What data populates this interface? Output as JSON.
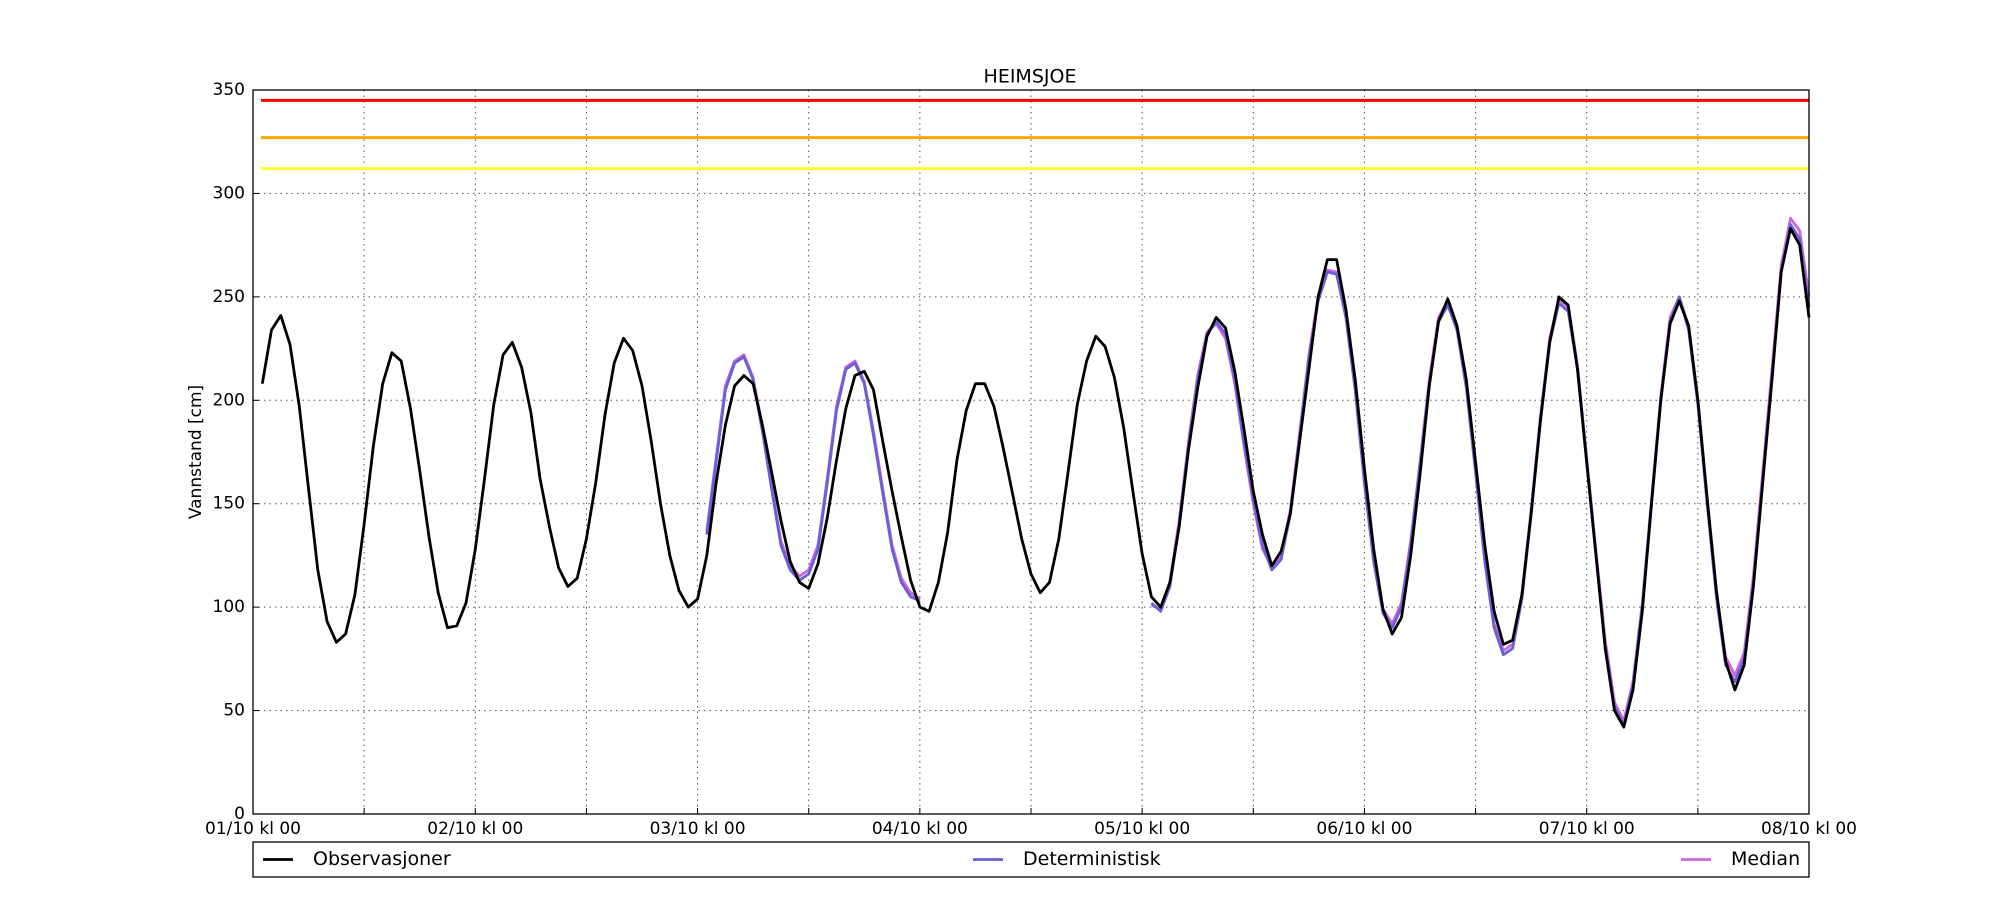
{
  "chart_data": {
    "type": "line",
    "title": "HEIMSJOE",
    "ylabel": "Vannstand [cm]",
    "x": [
      1,
      2,
      3,
      4,
      5,
      6,
      7,
      8,
      9,
      10,
      11,
      12,
      13,
      14,
      15,
      16,
      17,
      18,
      19,
      20,
      21,
      22,
      23,
      24,
      25,
      26,
      27,
      28,
      29,
      30,
      31,
      32,
      33,
      34,
      35,
      36,
      37,
      38,
      39,
      40,
      41,
      42,
      43,
      44,
      45,
      46,
      47,
      48,
      49,
      50,
      51,
      52,
      53,
      54,
      55,
      56,
      57,
      58,
      59,
      60,
      61,
      62,
      63,
      64,
      65,
      66,
      67,
      68,
      69,
      70,
      71,
      72,
      73,
      74,
      75,
      76,
      77,
      78,
      79,
      80,
      81,
      82,
      83,
      84,
      85,
      86,
      87,
      88,
      89,
      90,
      91,
      92,
      93,
      94,
      95,
      96,
      97,
      98,
      99,
      100,
      101,
      102,
      103,
      104,
      105,
      106,
      107,
      108,
      109,
      110,
      111,
      112,
      113,
      114,
      115,
      116,
      117,
      118,
      119,
      120,
      121,
      122,
      123,
      124,
      125,
      126,
      127,
      128,
      129,
      130,
      131,
      132,
      133,
      134,
      135,
      136,
      137,
      138,
      139,
      140,
      141,
      142,
      143,
      144,
      145,
      146,
      147,
      148,
      149,
      150,
      151,
      152,
      153,
      154,
      155,
      156,
      157,
      158,
      159,
      160,
      161,
      162,
      163,
      164,
      165,
      166,
      167,
      168
    ],
    "series": [
      {
        "name": "Observasjoner",
        "color": "#000000",
        "values": [
          208,
          234,
          241,
          227,
          197,
          157,
          118,
          93,
          83,
          87,
          106,
          140,
          178,
          208,
          223,
          219,
          196,
          166,
          134,
          107,
          90,
          91,
          102,
          128,
          162,
          198,
          222,
          228,
          216,
          194,
          162,
          139,
          119,
          110,
          114,
          133,
          160,
          193,
          218,
          230,
          224,
          207,
          180,
          150,
          125,
          108,
          100,
          104,
          125,
          160,
          188,
          207,
          212,
          208,
          188,
          165,
          142,
          122,
          112,
          109,
          121,
          143,
          171,
          196,
          212,
          214,
          205,
          180,
          156,
          134,
          113,
          100,
          98,
          112,
          136,
          171,
          195,
          208,
          208,
          197,
          177,
          155,
          133,
          116,
          107,
          112,
          133,
          165,
          198,
          219,
          231,
          226,
          211,
          187,
          156,
          126,
          105,
          100,
          112,
          139,
          176,
          206,
          231,
          240,
          235,
          214,
          186,
          156,
          135,
          120,
          127,
          145,
          180,
          215,
          250,
          268,
          268,
          244,
          210,
          167,
          128,
          99,
          87,
          95,
          125,
          164,
          207,
          238,
          249,
          236,
          210,
          170,
          130,
          98,
          82,
          84,
          106,
          145,
          190,
          228,
          250,
          246,
          215,
          170,
          125,
          80,
          50,
          42,
          60,
          98,
          150,
          200,
          237,
          248,
          236,
          200,
          153,
          108,
          74,
          60,
          72,
          110,
          160,
          210,
          262,
          283,
          275,
          240
        ]
      },
      {
        "name": "Deterministisk",
        "color": "#6a5fd8",
        "values": [
          null,
          null,
          null,
          null,
          null,
          null,
          null,
          null,
          null,
          null,
          null,
          null,
          null,
          null,
          null,
          null,
          null,
          null,
          null,
          null,
          null,
          null,
          null,
          null,
          null,
          null,
          null,
          null,
          null,
          null,
          null,
          null,
          null,
          null,
          null,
          null,
          null,
          null,
          null,
          null,
          null,
          null,
          null,
          null,
          null,
          null,
          null,
          null,
          135,
          170,
          205,
          218,
          221,
          210,
          185,
          157,
          130,
          118,
          113,
          116,
          128,
          160,
          195,
          215,
          218,
          208,
          183,
          155,
          128,
          112,
          105,
          103,
          null,
          null,
          null,
          null,
          null,
          null,
          null,
          null,
          null,
          null,
          null,
          null,
          null,
          null,
          null,
          null,
          null,
          null,
          null,
          null,
          null,
          null,
          null,
          null,
          102,
          98,
          110,
          140,
          178,
          210,
          232,
          238,
          232,
          210,
          180,
          152,
          130,
          118,
          123,
          145,
          182,
          220,
          248,
          262,
          261,
          240,
          205,
          160,
          122,
          97,
          90,
          100,
          130,
          168,
          208,
          238,
          246,
          234,
          206,
          165,
          122,
          90,
          77,
          80,
          104,
          145,
          190,
          228,
          247,
          243,
          215,
          170,
          125,
          82,
          52,
          43,
          62,
          100,
          150,
          200,
          238,
          250,
          234,
          198,
          150,
          105,
          72,
          64,
          75,
          112,
          162,
          212,
          262,
          285,
          278,
          245
        ]
      },
      {
        "name": "Median",
        "color": "#cc66dd",
        "values": [
          null,
          null,
          null,
          null,
          null,
          null,
          null,
          null,
          null,
          null,
          null,
          null,
          null,
          null,
          null,
          null,
          null,
          null,
          null,
          null,
          null,
          null,
          null,
          null,
          null,
          null,
          null,
          null,
          null,
          null,
          null,
          null,
          null,
          null,
          null,
          null,
          null,
          null,
          null,
          null,
          null,
          null,
          null,
          null,
          null,
          null,
          null,
          null,
          137,
          172,
          207,
          219,
          222,
          211,
          187,
          159,
          132,
          120,
          115,
          118,
          130,
          162,
          197,
          216,
          219,
          209,
          185,
          157,
          130,
          114,
          107,
          104,
          null,
          null,
          null,
          null,
          null,
          null,
          null,
          null,
          null,
          null,
          null,
          null,
          null,
          null,
          null,
          null,
          null,
          null,
          null,
          null,
          null,
          null,
          null,
          null,
          101,
          99,
          112,
          142,
          180,
          212,
          233,
          237,
          230,
          208,
          178,
          150,
          128,
          120,
          125,
          147,
          184,
          222,
          250,
          263,
          262,
          241,
          206,
          162,
          124,
          99,
          92,
          102,
          132,
          170,
          210,
          240,
          248,
          236,
          208,
          167,
          124,
          92,
          79,
          82,
          106,
          147,
          192,
          230,
          249,
          245,
          217,
          172,
          127,
          84,
          54,
          45,
          64,
          102,
          152,
          202,
          240,
          250,
          236,
          200,
          152,
          107,
          76,
          67,
          78,
          115,
          165,
          215,
          265,
          288,
          282,
          250
        ]
      }
    ],
    "thresholds": [
      {
        "value": 345,
        "color": "#ff0000"
      },
      {
        "value": 327,
        "color": "#ffa500"
      },
      {
        "value": 312,
        "color": "#ffff33"
      }
    ],
    "xlim": [
      0,
      168
    ],
    "xticks": [
      {
        "value": 0,
        "label": "01/10 kl 00"
      },
      {
        "value": 24,
        "label": "02/10 kl 00"
      },
      {
        "value": 48,
        "label": "03/10 kl 00"
      },
      {
        "value": 72,
        "label": "04/10 kl 00"
      },
      {
        "value": 96,
        "label": "05/10 kl 00"
      },
      {
        "value": 120,
        "label": "06/10 kl 00"
      },
      {
        "value": 144,
        "label": "07/10 kl 00"
      },
      {
        "value": 168,
        "label": "08/10 kl 00"
      }
    ],
    "xminorticks": [
      12,
      36,
      60,
      84,
      108,
      132,
      156
    ],
    "ylim": [
      0,
      350
    ],
    "yticks": [
      0,
      50,
      100,
      150,
      200,
      250,
      300,
      350
    ],
    "grid": true,
    "legend": "below"
  }
}
